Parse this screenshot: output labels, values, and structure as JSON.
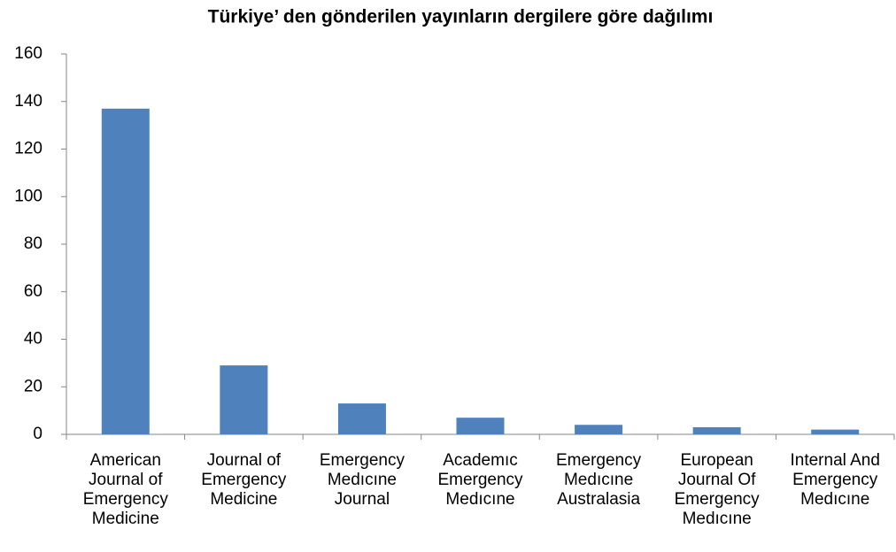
{
  "chart_data": {
    "type": "bar",
    "title": "Türkiye’ den gönderilen yayınların dergilere göre dağılımı",
    "categories": [
      "American Journal of Emergency Medicine",
      "Journal of Emergency Medicine",
      "Emergency Medıcıne Journal",
      "Academıc Emergency Medıcıne",
      "Emergency Medıcıne Australasia",
      "European Journal Of Emergency Medıcıne",
      "Internal And Emergency Medıcıne"
    ],
    "values": [
      137,
      29,
      13,
      7,
      4,
      3,
      2
    ],
    "color": "#4f81bd",
    "ylim": [
      0,
      160
    ],
    "yticks": [
      0,
      20,
      40,
      60,
      80,
      100,
      120,
      140,
      160
    ],
    "grid": false
  }
}
